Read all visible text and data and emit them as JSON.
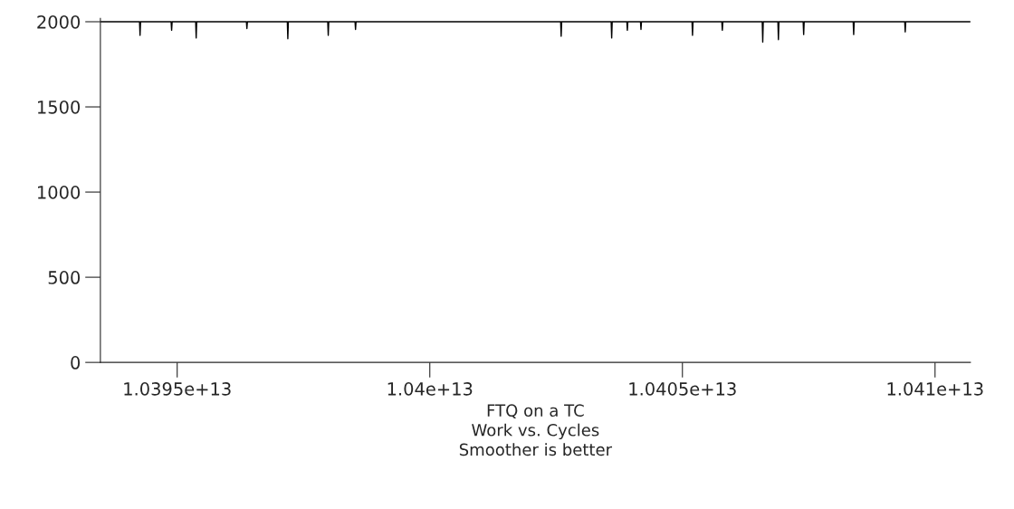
{
  "chart_data": {
    "type": "line",
    "xlabel": "FTQ on a TC\nWork vs. Cycles\nSmoother is better",
    "x": [
      10393480000000,
      10394255000000,
      10394265000000,
      10394275000000,
      10394880000000,
      10394890000000,
      10394900000000,
      10395366000000,
      10395376000000,
      10395386000000,
      10396370000000,
      10396380000000,
      10396390000000,
      10397180000000,
      10397190000000,
      10397200000000,
      10397980000000,
      10397990000000,
      10398000000000,
      10398520000000,
      10398530000000,
      10398540000000,
      10402590000000,
      10402600000000,
      10402610000000,
      10403590000000,
      10403600000000,
      10403610000000,
      10403900000000,
      10403910000000,
      10403920000000,
      10404170000000,
      10404180000000,
      10404190000000,
      10405190000000,
      10405200000000,
      10405210000000,
      10405780000000,
      10405790000000,
      10405800000000,
      10406580000000,
      10406590000000,
      10406600000000,
      10406890000000,
      10406900000000,
      10406910000000,
      10407390000000,
      10407400000000,
      10407410000000,
      10408380000000,
      10408390000000,
      10408400000000,
      10409400000000,
      10409410000000,
      10409420000000,
      10410700000000
    ],
    "series": [
      {
        "color": "#000000",
        "values": [
          2000,
          2000,
          1920,
          2000,
          2000,
          1950,
          2000,
          2000,
          1905,
          2000,
          2000,
          1960,
          2000,
          2000,
          1900,
          2000,
          2000,
          1920,
          2000,
          2000,
          1955,
          2000,
          2000,
          1915,
          2000,
          2000,
          1905,
          2000,
          2000,
          1950,
          2000,
          2000,
          1955,
          2000,
          2000,
          1920,
          2000,
          2000,
          1950,
          2000,
          2000,
          1880,
          2000,
          2000,
          1895,
          2000,
          2000,
          1925,
          2000,
          2000,
          1925,
          2000,
          2000,
          1940,
          2000,
          2000
        ]
      }
    ],
    "xlim": [
      10393480000000,
      10410700000000
    ],
    "xticks": [
      {
        "value": 10395000000000,
        "label": "1.0395e+13"
      },
      {
        "value": 10400000000000,
        "label": "1.04e+13"
      },
      {
        "value": 10405000000000,
        "label": "1.0405e+13"
      },
      {
        "value": 10410000000000,
        "label": "1.041e+13"
      }
    ],
    "ylim": [
      0,
      2020
    ],
    "yticks": [
      0,
      500,
      1000,
      1500,
      2000
    ],
    "grid": false,
    "legend": false
  }
}
